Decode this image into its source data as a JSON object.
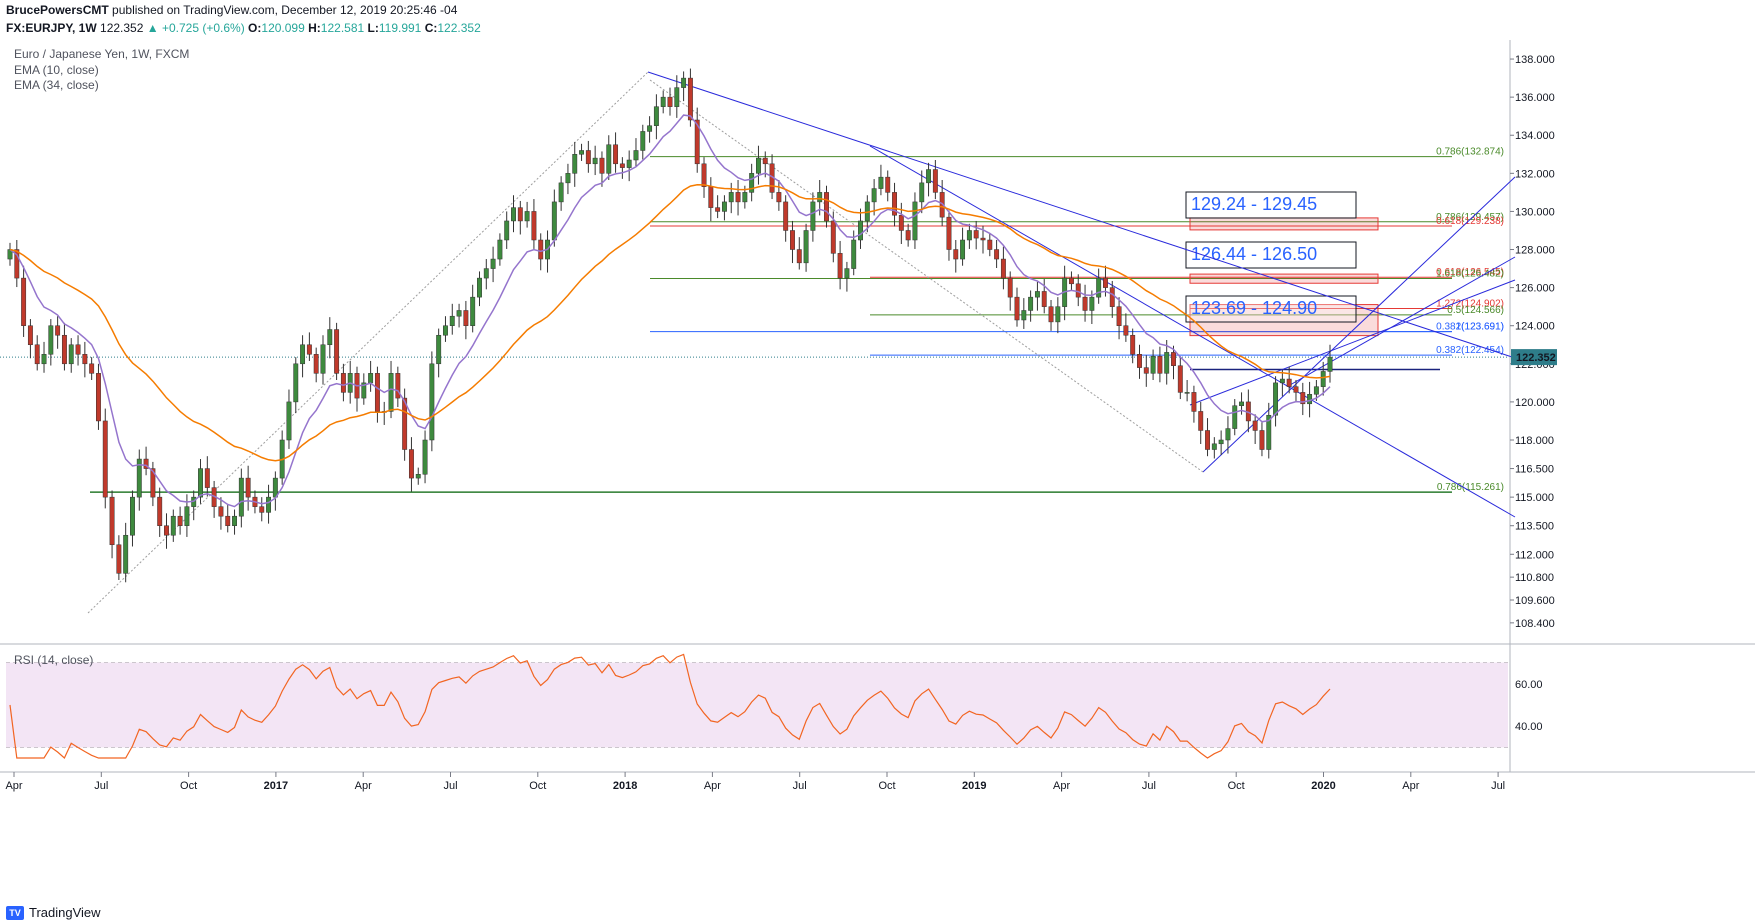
{
  "header": {
    "author": "BrucePowersCMT",
    "published": "published on TradingView.com, December 12, 2019 20:25:46 -04",
    "symbol": "FX:EURJPY, 1W",
    "last": "122.352",
    "change": "▲ +0.725 (+0.6%)",
    "o_label": "O:",
    "o": "120.099",
    "h_label": "H:",
    "h": "122.581",
    "l_label": "L:",
    "l": "119.991",
    "c_label": "C:",
    "c": "122.352"
  },
  "legend": {
    "title": "Euro / Japanese Yen, 1W, FXCM",
    "ema10": "EMA (10, close)",
    "ema34": "EMA (34, close)",
    "rsi": "RSI (14, close)"
  },
  "colors": {
    "up": "#3e8a3e",
    "down": "#c0392b",
    "ema10": "#9575cd",
    "ema34": "#f57c00",
    "rsi": "#f26522",
    "rsi_bg": "#f3e5f5",
    "trend": "#2a2adb",
    "green": "#4caf50",
    "red": "#e53935"
  },
  "chart_data": {
    "type": "candlestick",
    "title": "Euro / Japanese Yen, 1W, FXCM",
    "ylim": [
      107.5,
      139.0
    ],
    "y_ticks": [
      "138.000",
      "136.000",
      "134.000",
      "132.000",
      "130.000",
      "128.000",
      "126.000",
      "124.000",
      "122.000",
      "120.000",
      "118.000",
      "116.500",
      "115.000",
      "113.500",
      "112.000",
      "110.800",
      "109.600",
      "108.400"
    ],
    "x_ticks": [
      "Apr",
      "Jul",
      "Oct",
      "2017",
      "Apr",
      "Jul",
      "Oct",
      "2018",
      "Apr",
      "Jul",
      "Oct",
      "2019",
      "Apr",
      "Jul",
      "Oct",
      "2020",
      "Apr",
      "Jul"
    ],
    "closes": [
      128,
      126.5,
      124,
      123,
      122,
      122.5,
      124,
      123.5,
      122,
      123,
      122.5,
      122,
      121.5,
      119,
      115,
      112.5,
      111,
      113,
      115,
      117,
      116.5,
      115,
      113.5,
      113,
      114,
      113.5,
      114.5,
      115,
      116.5,
      115.5,
      114.5,
      114,
      113.5,
      114,
      116,
      115,
      114.5,
      114.2,
      115,
      116,
      118,
      120,
      122,
      123,
      122.5,
      121.5,
      123,
      123.8,
      121.5,
      120.5,
      121.5,
      120.2,
      121,
      121.5,
      119.5,
      119.5,
      121.5,
      120.2,
      117.5,
      116,
      116.2,
      118,
      122,
      123.5,
      124,
      124.5,
      124.8,
      124,
      125.5,
      126.5,
      127,
      127.5,
      128.5,
      129.5,
      130.2,
      129.5,
      130,
      128.5,
      127.5,
      128.5,
      130.5,
      131.5,
      132,
      133,
      133.2,
      132.5,
      132.8,
      132,
      133.5,
      132.5,
      132.3,
      132.7,
      133.2,
      134.2,
      134.5,
      135.5,
      136,
      135.5,
      136.5,
      137,
      134.8,
      132.5,
      131.3,
      130.2,
      130,
      130.5,
      131,
      130.5,
      131,
      132,
      132.8,
      132.5,
      131,
      130.5,
      129,
      128,
      127.3,
      129,
      130.5,
      131,
      129.5,
      127.8,
      126.5,
      127,
      128.5,
      129.5,
      130.5,
      131.2,
      131.8,
      131,
      129.8,
      129,
      128.5,
      130.5,
      131.5,
      132.2,
      131,
      129.7,
      128,
      127.5,
      128.5,
      129,
      128.6,
      128.5,
      128,
      127.5,
      126.5,
      125.5,
      124.3,
      124.8,
      125.5,
      125.8,
      125,
      124.2,
      125,
      126.5,
      126.2,
      125.5,
      124.8,
      125.5,
      126.5,
      126,
      125,
      124,
      123.5,
      122.5,
      121.8,
      121.5,
      122.4,
      121.5,
      122.6,
      121.9,
      120.5,
      120.5,
      119.5,
      118.5,
      117.5,
      117.8,
      118,
      118.6,
      119.8,
      120,
      119,
      118.5,
      117.5,
      119.3,
      121,
      121.2,
      120.8,
      120.5,
      119.9,
      120.4,
      120.8,
      121.6,
      122.352
    ],
    "ema10_note": "computed",
    "ema34_note": "computed",
    "levels": [
      {
        "label": "0.786(132.874)",
        "value": 132.874,
        "color": "#4a8a2a"
      },
      {
        "label": "0.786(129.457)",
        "value": 129.457,
        "color": "#4a8a2a"
      },
      {
        "label": "0.618(129.238)",
        "value": 129.238,
        "color": "#e53935"
      },
      {
        "label": "0.618(126.545)",
        "value": 126.545,
        "color": "#e53935"
      },
      {
        "label": "1.618(126.482)",
        "value": 126.482,
        "color": "#4a8a2a"
      },
      {
        "label": "1.272(124.902)",
        "value": 124.902,
        "color": "#e53935"
      },
      {
        "label": "0.5(124.566)",
        "value": 124.566,
        "color": "#4a8a2a"
      },
      {
        "label": "0.382(123.691)",
        "value": 123.691,
        "color": "#2962ff"
      },
      {
        "label": "1(123.691)",
        "value": 123.691,
        "color": "#2962ff"
      },
      {
        "label": "0.382(122.454)",
        "value": 122.454,
        "color": "#2962ff"
      },
      {
        "label": "0.786(115.261)",
        "value": 115.261,
        "color": "#4a8a2a"
      }
    ],
    "price_tag": "122.352",
    "target_boxes": [
      {
        "label": "129.24 - 129.45",
        "low": 129.24,
        "high": 129.45
      },
      {
        "label": "126.44 - 126.50",
        "low": 126.44,
        "high": 126.5
      },
      {
        "label": "123.69 - 124.90",
        "low": 123.69,
        "high": 124.9
      }
    ],
    "rsi": {
      "ylim": [
        25,
        75
      ],
      "y_ticks": [
        "60.00",
        "40.00"
      ],
      "bands": [
        70,
        30
      ]
    }
  },
  "footer": {
    "brand": "TradingView"
  }
}
